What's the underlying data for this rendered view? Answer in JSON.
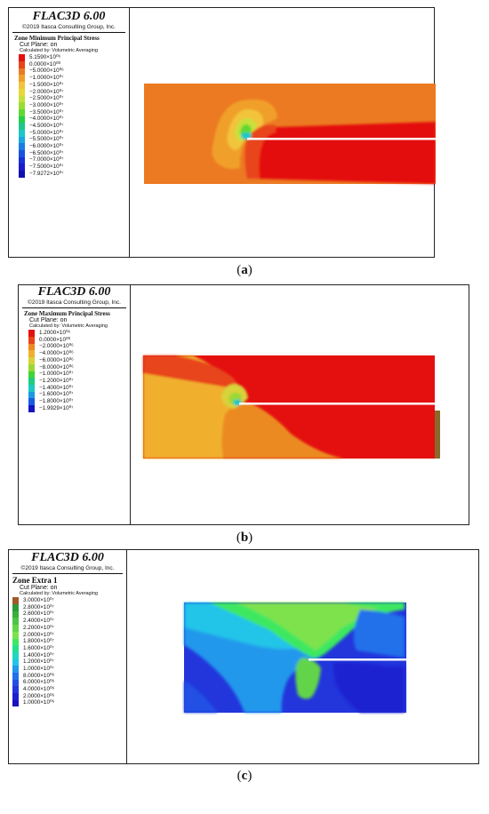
{
  "panels": [
    {
      "brand": "FLAC3D 6.00",
      "copyright": "©2019 Itasca Consulting Group, Inc.",
      "legend_title": "Zone Minimum Principal Stress",
      "cut_plane": "Cut Plane: on",
      "calc": "Calculated by: Volumetric Averaging",
      "entries": [
        {
          "label": "5.1590×10⁰⁶",
          "color": "#e41010"
        },
        {
          "label": "0.0000×10⁰⁰",
          "color": "#e8451a"
        },
        {
          "label": "−5.0000×10⁰⁶",
          "color": "#ec7a22"
        },
        {
          "label": "−1.0000×10⁰⁷",
          "color": "#f0a02a"
        },
        {
          "label": "−1.5000×10⁰⁷",
          "color": "#f2c43a"
        },
        {
          "label": "−2.0000×10⁰⁷",
          "color": "#e8d83a"
        },
        {
          "label": "−2.5000×10⁰⁷",
          "color": "#c8e03a"
        },
        {
          "label": "−3.0000×10⁰⁷",
          "color": "#98dc36"
        },
        {
          "label": "−3.5000×10⁰⁷",
          "color": "#5ed834"
        },
        {
          "label": "−4.0000×10⁰⁷",
          "color": "#22d044"
        },
        {
          "label": "−4.5000×10⁰⁷",
          "color": "#1ec88a"
        },
        {
          "label": "−5.0000×10⁰⁷",
          "color": "#1cc8c8"
        },
        {
          "label": "−5.5000×10⁰⁷",
          "color": "#1aa8e0"
        },
        {
          "label": "−6.0000×10⁰⁷",
          "color": "#1a7ce4"
        },
        {
          "label": "−6.5000×10⁰⁷",
          "color": "#1a52e0"
        },
        {
          "label": "−7.0000×10⁰⁷",
          "color": "#1a30d8"
        },
        {
          "label": "−7.5000×10⁰⁷",
          "color": "#1a1ccc"
        },
        {
          "label": "−7.9272×10⁰⁷",
          "color": "#1010b0"
        }
      ],
      "caption_letter": "a"
    },
    {
      "brand": "FLAC3D 6.00",
      "copyright": "©2019 Itasca Consulting Group, Inc.",
      "legend_title": "Zone Maximum Principal Stress",
      "cut_plane": "Cut Plane: on",
      "calc": "Calculated by: Volumetric Averaging",
      "entries": [
        {
          "label": "1.2000×10⁰⁶",
          "color": "#e41010"
        },
        {
          "label": "0.0000×10⁰⁰",
          "color": "#e8451a"
        },
        {
          "label": "−2.0000×10⁰⁶",
          "color": "#ec8a24"
        },
        {
          "label": "−4.0000×10⁰⁶",
          "color": "#f0b02e"
        },
        {
          "label": "−6.0000×10⁰⁶",
          "color": "#d8d23a"
        },
        {
          "label": "−8.0000×10⁰⁶",
          "color": "#9ad836"
        },
        {
          "label": "−1.0000×10⁰⁷",
          "color": "#40d43a"
        },
        {
          "label": "−1.2000×10⁰⁷",
          "color": "#1ecc7e"
        },
        {
          "label": "−1.4000×10⁰⁷",
          "color": "#1cc8c4"
        },
        {
          "label": "−1.6000×10⁰⁷",
          "color": "#1a9ae0"
        },
        {
          "label": "−1.8000×10⁰⁷",
          "color": "#1a5ae0"
        },
        {
          "label": "−1.9929×10⁰⁷",
          "color": "#1414c0"
        }
      ],
      "caption_letter": "b"
    },
    {
      "brand": "FLAC3D 6.00",
      "copyright": "©2019 Itasca Consulting Group, Inc.",
      "legend_title": "Zone Extra 1",
      "cut_plane": "Cut Plane: on",
      "calc": "Calculated by: Volumetric Averaging",
      "entries": [
        {
          "label": "3.0000×10⁰⁷",
          "color": "#a05a2a"
        },
        {
          "label": "2.8000×10⁰⁷",
          "color": "#2a9a3a"
        },
        {
          "label": "2.6000×10⁰⁷",
          "color": "#3aae3e"
        },
        {
          "label": "2.4000×10⁰⁷",
          "color": "#4cc444"
        },
        {
          "label": "2.2000×10⁰⁷",
          "color": "#62d44a"
        },
        {
          "label": "2.0000×10⁰⁷",
          "color": "#7ee24e"
        },
        {
          "label": "1.8000×10⁰⁷",
          "color": "#3ee860"
        },
        {
          "label": "1.6000×10⁰⁷",
          "color": "#22e08c"
        },
        {
          "label": "1.4000×10⁰⁷",
          "color": "#20d8c0"
        },
        {
          "label": "1.2000×10⁰⁷",
          "color": "#22c4e8"
        },
        {
          "label": "1.0000×10⁰⁷",
          "color": "#2298ec"
        },
        {
          "label": "8.0000×10⁰⁶",
          "color": "#2270ea"
        },
        {
          "label": "6.0000×10⁰⁶",
          "color": "#2250e4"
        },
        {
          "label": "4.0000×10⁰⁶",
          "color": "#2236dc"
        },
        {
          "label": "2.0000×10⁰⁶",
          "color": "#1e20d0"
        },
        {
          "label": "1.0000×10⁰⁶",
          "color": "#1a12c0"
        }
      ],
      "caption_letter": "c"
    }
  ]
}
